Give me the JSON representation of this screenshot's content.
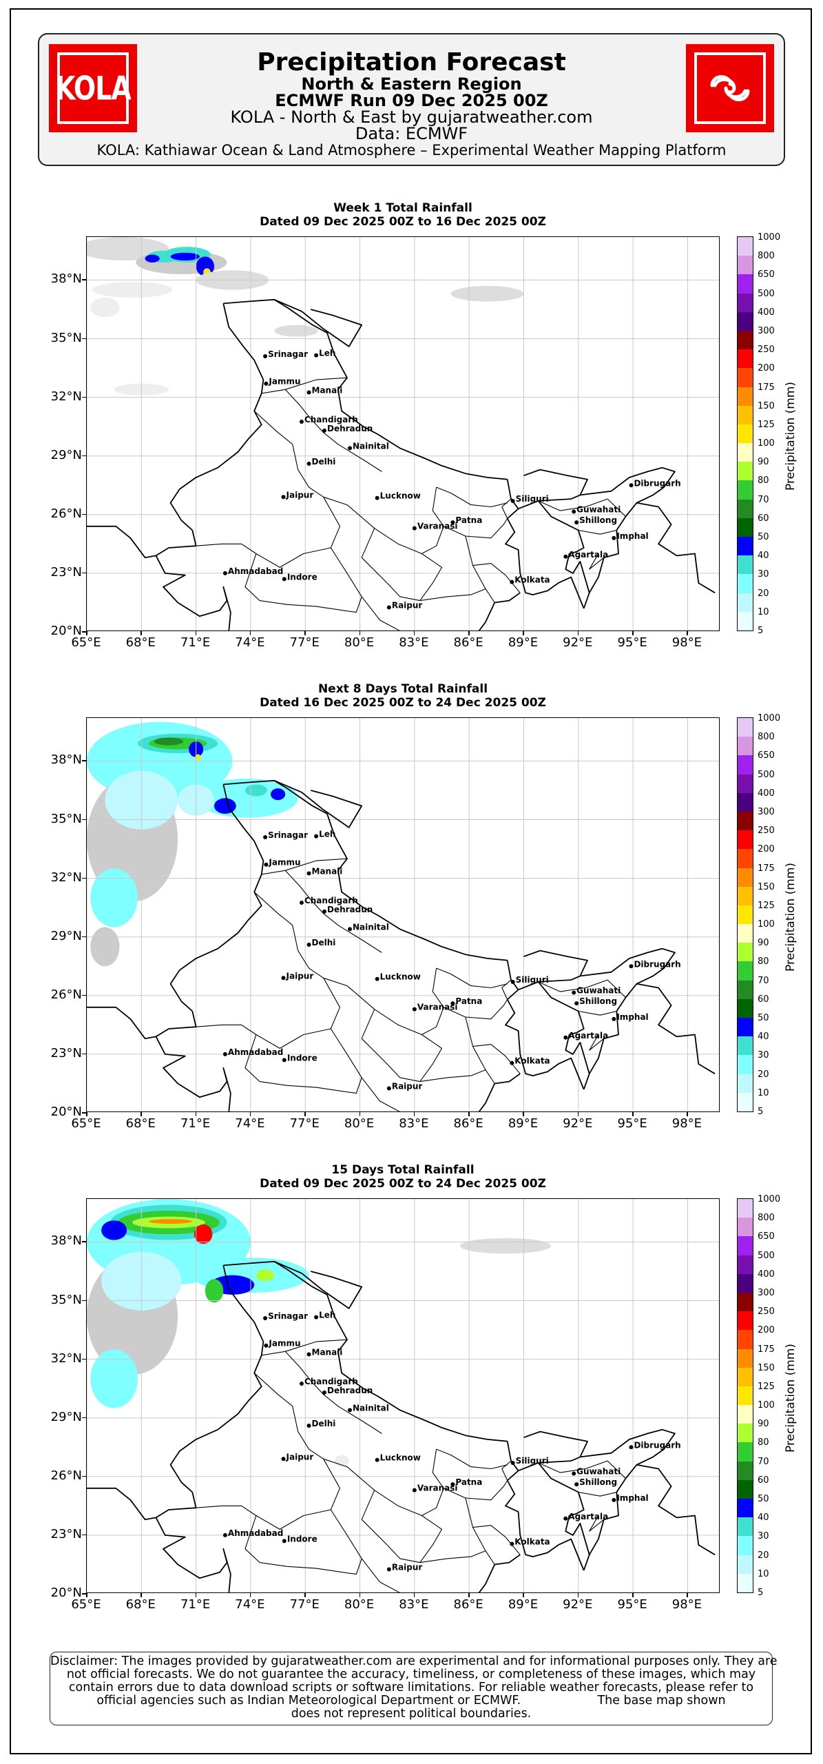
{
  "header": {
    "left_logo_text": "KOLA",
    "right_logo_icon": "cyclone-swirl-icon",
    "title": "Precipitation Forecast",
    "subtitle_region": "North & Eastern Region",
    "subtitle_run": "ECMWF Run 09 Dec 2025 00Z",
    "subtitle_source": "KOLA - North & East by gujaratweather.com",
    "subtitle_data": "Data: ECMWF",
    "subtitle_platform": "KOLA: Kathiawar Ocean & Land Atmosphere – Experimental Weather Mapping Platform",
    "logo_color": "#ee0000"
  },
  "map_axes": {
    "lat_labels": [
      "38°N",
      "35°N",
      "32°N",
      "29°N",
      "26°N",
      "23°N",
      "20°N"
    ],
    "lat_values": [
      38,
      35,
      32,
      29,
      26,
      23,
      20
    ],
    "lon_labels": [
      "65°E",
      "68°E",
      "71°E",
      "74°E",
      "77°E",
      "80°E",
      "83°E",
      "86°E",
      "89°E",
      "92°E",
      "95°E",
      "98°E"
    ],
    "lon_values": [
      65,
      68,
      71,
      74,
      77,
      80,
      83,
      86,
      89,
      92,
      95,
      98
    ],
    "lat_range": [
      20,
      40.2
    ],
    "lon_range": [
      65,
      99.8
    ],
    "grid": true
  },
  "colorbar": {
    "title": "Precipitation (mm)",
    "ticks": [
      "1000",
      "800",
      "650",
      "500",
      "400",
      "300",
      "250",
      "200",
      "175",
      "150",
      "125",
      "100",
      "90",
      "80",
      "70",
      "60",
      "50",
      "40",
      "30",
      "20",
      "10",
      "5"
    ],
    "colors": [
      "#e6c8f5",
      "#d896e0",
      "#a020f0",
      "#7a0fb0",
      "#4b0082",
      "#8b0000",
      "#ff0000",
      "#ff4500",
      "#ff8c00",
      "#ffc000",
      "#ffe600",
      "#ffffc0",
      "#adff2f",
      "#32cd32",
      "#228b22",
      "#006400",
      "#0000ff",
      "#40e0d0",
      "#7fffff",
      "#c0f8ff",
      "#e8ffff",
      "#cccccc",
      "#eeeeee"
    ]
  },
  "cities": [
    {
      "name": "Srinagar",
      "lat": 34.1,
      "lon": 74.8
    },
    {
      "name": "Leh",
      "lat": 34.15,
      "lon": 77.6
    },
    {
      "name": "Jammu",
      "lat": 32.7,
      "lon": 74.85
    },
    {
      "name": "Manali",
      "lat": 32.25,
      "lon": 77.2
    },
    {
      "name": "Chandigarh",
      "lat": 30.75,
      "lon": 76.8
    },
    {
      "name": "Dehradun",
      "lat": 30.3,
      "lon": 78.05
    },
    {
      "name": "Nainital",
      "lat": 29.4,
      "lon": 79.45
    },
    {
      "name": "Delhi",
      "lat": 28.6,
      "lon": 77.2
    },
    {
      "name": "Jaipur",
      "lat": 26.9,
      "lon": 75.8
    },
    {
      "name": "Lucknow",
      "lat": 26.85,
      "lon": 80.95
    },
    {
      "name": "Siliguri",
      "lat": 26.7,
      "lon": 88.4
    },
    {
      "name": "Dibrugarh",
      "lat": 27.5,
      "lon": 94.9
    },
    {
      "name": "Guwahati",
      "lat": 26.15,
      "lon": 91.75
    },
    {
      "name": "Shillong",
      "lat": 25.6,
      "lon": 91.9
    },
    {
      "name": "Patna",
      "lat": 25.6,
      "lon": 85.1
    },
    {
      "name": "Varanasi",
      "lat": 25.3,
      "lon": 83.0
    },
    {
      "name": "Imphal",
      "lat": 24.8,
      "lon": 93.95
    },
    {
      "name": "Agartala",
      "lat": 23.85,
      "lon": 91.3
    },
    {
      "name": "Ahmadabad",
      "lat": 23.0,
      "lon": 72.6
    },
    {
      "name": "Indore",
      "lat": 22.7,
      "lon": 75.85
    },
    {
      "name": "Kolkata",
      "lat": 22.55,
      "lon": 88.35
    },
    {
      "name": "Raipur",
      "lat": 21.25,
      "lon": 81.6
    }
  ],
  "panels": [
    {
      "title": "Week 1 Total Rainfall",
      "dates": "Dated 09 Dec 2025 00Z to 16 Dec 2025 00Z"
    },
    {
      "title": "Next 8 Days Total Rainfall",
      "dates": "Dated 16 Dec 2025 00Z to 24 Dec 2025 00Z"
    },
    {
      "title": "15 Days Total Rainfall",
      "dates": "Dated 09 Dec 2025 00Z to 24 Dec 2025 00Z"
    }
  ],
  "disclaimer": {
    "line1": "Disclaimer: The images provided by gujaratweather.com are experimental and for informational purposes only. They are",
    "line2": "not official forecasts. We do not guarantee the accuracy, timeliness, or completeness of these images, which may",
    "line3": "contain errors due to data download scripts or software limitations. For reliable weather forecasts, please refer to",
    "line4": "official agencies such as Indian Meteorological Department or ECMWF.                    The base map shown",
    "line5": "does not represent political boundaries."
  }
}
